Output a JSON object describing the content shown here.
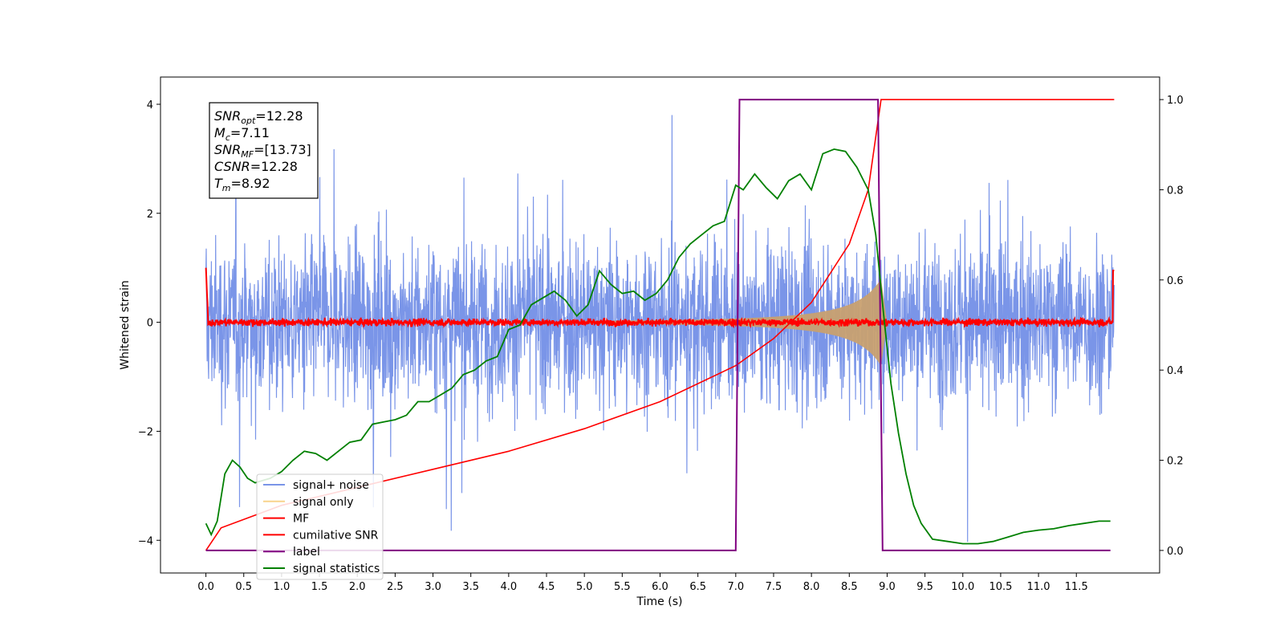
{
  "chart_data": {
    "type": "line",
    "xlabel": "Time (s)",
    "ylabel": "Whitened strain",
    "xlim": [
      -0.6,
      12.6
    ],
    "ylim_left": [
      -4.6,
      4.5
    ],
    "ylim_right": [
      -0.05,
      1.05
    ],
    "x_ticks": [
      0.0,
      0.5,
      1.0,
      1.5,
      2.0,
      2.5,
      3.0,
      3.5,
      4.0,
      4.5,
      5.0,
      5.5,
      6.0,
      6.5,
      7.0,
      7.5,
      8.0,
      8.5,
      9.0,
      9.5,
      10.0,
      10.5,
      11.0,
      11.5
    ],
    "x_tick_labels": [
      "0.0",
      "0.5",
      "1.0",
      "1.5",
      "2.0",
      "2.5",
      "3.0",
      "3.5",
      "4.0",
      "4.5",
      "5.0",
      "5.5",
      "6.0",
      "6.5",
      "7.0",
      "7.5",
      "8.0",
      "8.5",
      "9.0",
      "9.5",
      "10.0",
      "10.5",
      "11.0",
      "11.5"
    ],
    "y_left_ticks": [
      4,
      2,
      0,
      -2,
      -4
    ],
    "y_left_tick_labels": [
      "4",
      "2",
      "0",
      "−2",
      "−4"
    ],
    "y_right_ticks": [
      1.0,
      0.8,
      0.6,
      0.4,
      0.2,
      0.0
    ],
    "y_right_tick_labels": [
      "1.0",
      "0.8",
      "0.6",
      "0.4",
      "0.2",
      "0.0"
    ],
    "stats": [
      {
        "sym": "SNR",
        "sub": "opt",
        "value": "=12.28"
      },
      {
        "sym": "M",
        "sub": "c",
        "value": "=7.11"
      },
      {
        "sym": "SNR",
        "sub": "MF",
        "value": "=[13.73]"
      },
      {
        "sym": "CSNR",
        "sub": "",
        "value": "=12.28"
      },
      {
        "sym": "T",
        "sub": "m",
        "value": "=8.92"
      }
    ],
    "legend": [
      {
        "label": "signal+ noise",
        "color": "#7a95e8"
      },
      {
        "label": "signal only",
        "color": "#f8d48c"
      },
      {
        "label": "MF",
        "color": "#ff0000"
      },
      {
        "label": "cumilative SNR",
        "color": "#ff0000"
      },
      {
        "label": "label",
        "color": "#800080"
      },
      {
        "label": "signal statistics",
        "color": "#008000"
      }
    ],
    "series": [
      {
        "name": "signal+ noise",
        "axis": "left",
        "color": "#7a95e8",
        "x_range": [
          0.0,
          12.0
        ],
        "amplitude_range": [
          -4.1,
          4.05
        ]
      },
      {
        "name": "signal only",
        "axis": "left",
        "color": "#c8a070",
        "x_range": [
          5.0,
          9.0
        ],
        "peak_time": 8.92,
        "peak_amplitude": 0.8
      },
      {
        "name": "MF",
        "axis": "left",
        "color": "#ff0000",
        "x_range": [
          0.0,
          12.0
        ],
        "level": 0.0,
        "edge_values": [
          1.0,
          0.95
        ]
      },
      {
        "name": "cumilative SNR",
        "axis": "right",
        "color": "#ff0000",
        "x": [
          0.0,
          0.2,
          1.0,
          2.0,
          3.0,
          4.0,
          5.0,
          6.0,
          7.0,
          7.5,
          8.0,
          8.5,
          8.75,
          8.92,
          12.0
        ],
        "y": [
          0.0,
          0.05,
          0.1,
          0.14,
          0.18,
          0.22,
          0.27,
          0.33,
          0.41,
          0.47,
          0.55,
          0.68,
          0.8,
          1.0,
          1.0
        ]
      },
      {
        "name": "label",
        "axis": "right",
        "color": "#800080",
        "x": [
          0.0,
          7.0,
          7.05,
          8.88,
          8.94,
          11.95
        ],
        "y": [
          0.0,
          0.0,
          1.0,
          1.0,
          0.0,
          0.0
        ]
      },
      {
        "name": "signal statistics",
        "axis": "right",
        "color": "#008000",
        "x": [
          0.0,
          0.07,
          0.15,
          0.25,
          0.35,
          0.45,
          0.55,
          0.65,
          0.75,
          0.85,
          1.0,
          1.15,
          1.3,
          1.45,
          1.6,
          1.75,
          1.9,
          2.05,
          2.2,
          2.35,
          2.5,
          2.65,
          2.8,
          2.95,
          3.1,
          3.25,
          3.4,
          3.55,
          3.7,
          3.85,
          4.0,
          4.15,
          4.3,
          4.45,
          4.6,
          4.75,
          4.9,
          5.05,
          5.2,
          5.35,
          5.5,
          5.65,
          5.8,
          5.95,
          6.1,
          6.25,
          6.4,
          6.55,
          6.7,
          6.85,
          7.0,
          7.1,
          7.25,
          7.4,
          7.55,
          7.7,
          7.85,
          8.0,
          8.15,
          8.3,
          8.45,
          8.6,
          8.75,
          8.85,
          8.95,
          9.05,
          9.15,
          9.25,
          9.35,
          9.45,
          9.6,
          9.8,
          10.0,
          10.2,
          10.4,
          10.6,
          10.8,
          11.0,
          11.2,
          11.4,
          11.6,
          11.8,
          11.95
        ],
        "y": [
          0.06,
          0.035,
          0.065,
          0.17,
          0.2,
          0.185,
          0.16,
          0.15,
          0.155,
          0.16,
          0.175,
          0.2,
          0.22,
          0.215,
          0.2,
          0.22,
          0.24,
          0.245,
          0.28,
          0.285,
          0.29,
          0.3,
          0.33,
          0.33,
          0.345,
          0.36,
          0.39,
          0.4,
          0.42,
          0.43,
          0.49,
          0.5,
          0.545,
          0.56,
          0.575,
          0.555,
          0.52,
          0.545,
          0.62,
          0.59,
          0.57,
          0.575,
          0.555,
          0.57,
          0.6,
          0.65,
          0.68,
          0.7,
          0.72,
          0.73,
          0.81,
          0.8,
          0.835,
          0.805,
          0.78,
          0.82,
          0.835,
          0.8,
          0.88,
          0.89,
          0.885,
          0.85,
          0.8,
          0.7,
          0.53,
          0.37,
          0.26,
          0.17,
          0.1,
          0.06,
          0.025,
          0.02,
          0.015,
          0.015,
          0.02,
          0.03,
          0.04,
          0.045,
          0.048,
          0.055,
          0.06,
          0.065,
          0.065
        ]
      }
    ],
    "grid": false,
    "legend_position": "lower-left"
  }
}
